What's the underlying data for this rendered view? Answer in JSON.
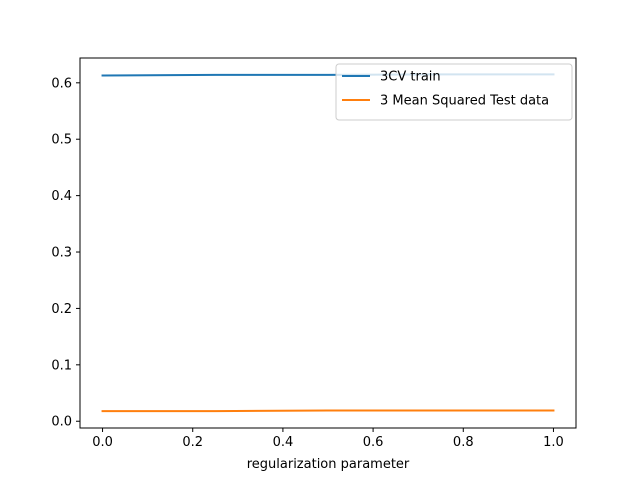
{
  "chart_data": {
    "type": "line",
    "xlabel": "regularization parameter",
    "ylabel": "",
    "xlim": [
      -0.05,
      1.05
    ],
    "ylim": [
      -0.012,
      0.644
    ],
    "x_ticks": [
      0.0,
      0.2,
      0.4,
      0.6,
      0.8,
      1.0
    ],
    "x_tick_labels": [
      "0.0",
      "0.2",
      "0.4",
      "0.6",
      "0.8",
      "1.0"
    ],
    "y_ticks": [
      0.0,
      0.1,
      0.2,
      0.3,
      0.4,
      0.5,
      0.6
    ],
    "y_tick_labels": [
      "0.0",
      "0.1",
      "0.2",
      "0.3",
      "0.4",
      "0.5",
      "0.6"
    ],
    "grid": false,
    "legend_position": "top-right",
    "series": [
      {
        "name": "3CV train",
        "color": "#1f77b4",
        "x": [
          0.0,
          0.25,
          0.5,
          0.75,
          1.0
        ],
        "y": [
          0.613,
          0.614,
          0.614,
          0.615,
          0.615
        ]
      },
      {
        "name": "3 Mean Squared Test data",
        "color": "#ff7f0e",
        "x": [
          0.0,
          0.25,
          0.5,
          0.75,
          1.0
        ],
        "y": [
          0.018,
          0.018,
          0.019,
          0.019,
          0.019
        ]
      }
    ]
  }
}
